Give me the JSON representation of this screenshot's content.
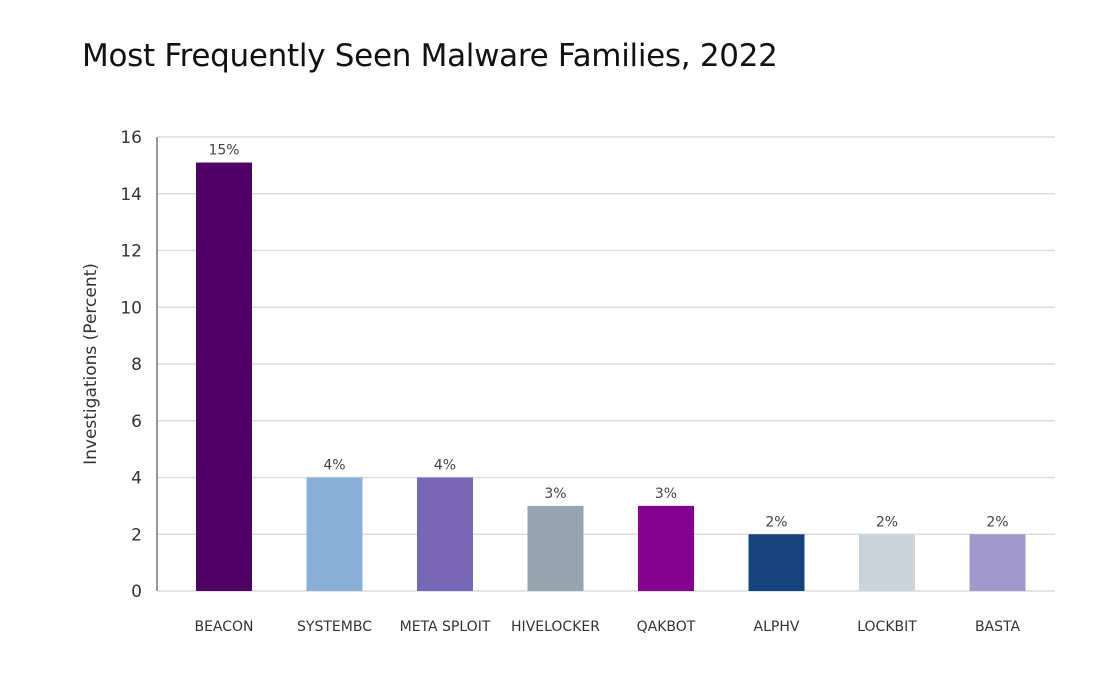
{
  "chart_data": {
    "type": "bar",
    "title": "Most Frequently Seen Malware Families, 2022",
    "xlabel": "",
    "ylabel": "Investigations (Percent)",
    "ylim": [
      0,
      16
    ],
    "yticks": [
      0,
      2,
      4,
      6,
      8,
      10,
      12,
      14,
      16
    ],
    "grid": true,
    "categories": [
      "BEACON",
      "SYSTEMBC",
      "META SPLOIT",
      "HIVELOCKER",
      "QAKBOT",
      "ALPHV",
      "LOCKBIT",
      "BASTA"
    ],
    "values": [
      15.1,
      4,
      4,
      3,
      3,
      2,
      2,
      2
    ],
    "data_labels": [
      "15%",
      "4%",
      "4%",
      "3%",
      "3%",
      "2%",
      "2%",
      "2%"
    ],
    "colors": [
      "#4f0064",
      "#8aafd6",
      "#7567b3",
      "#96a4b0",
      "#85008e",
      "#15447c",
      "#cbd3da",
      "#a098cc"
    ]
  }
}
